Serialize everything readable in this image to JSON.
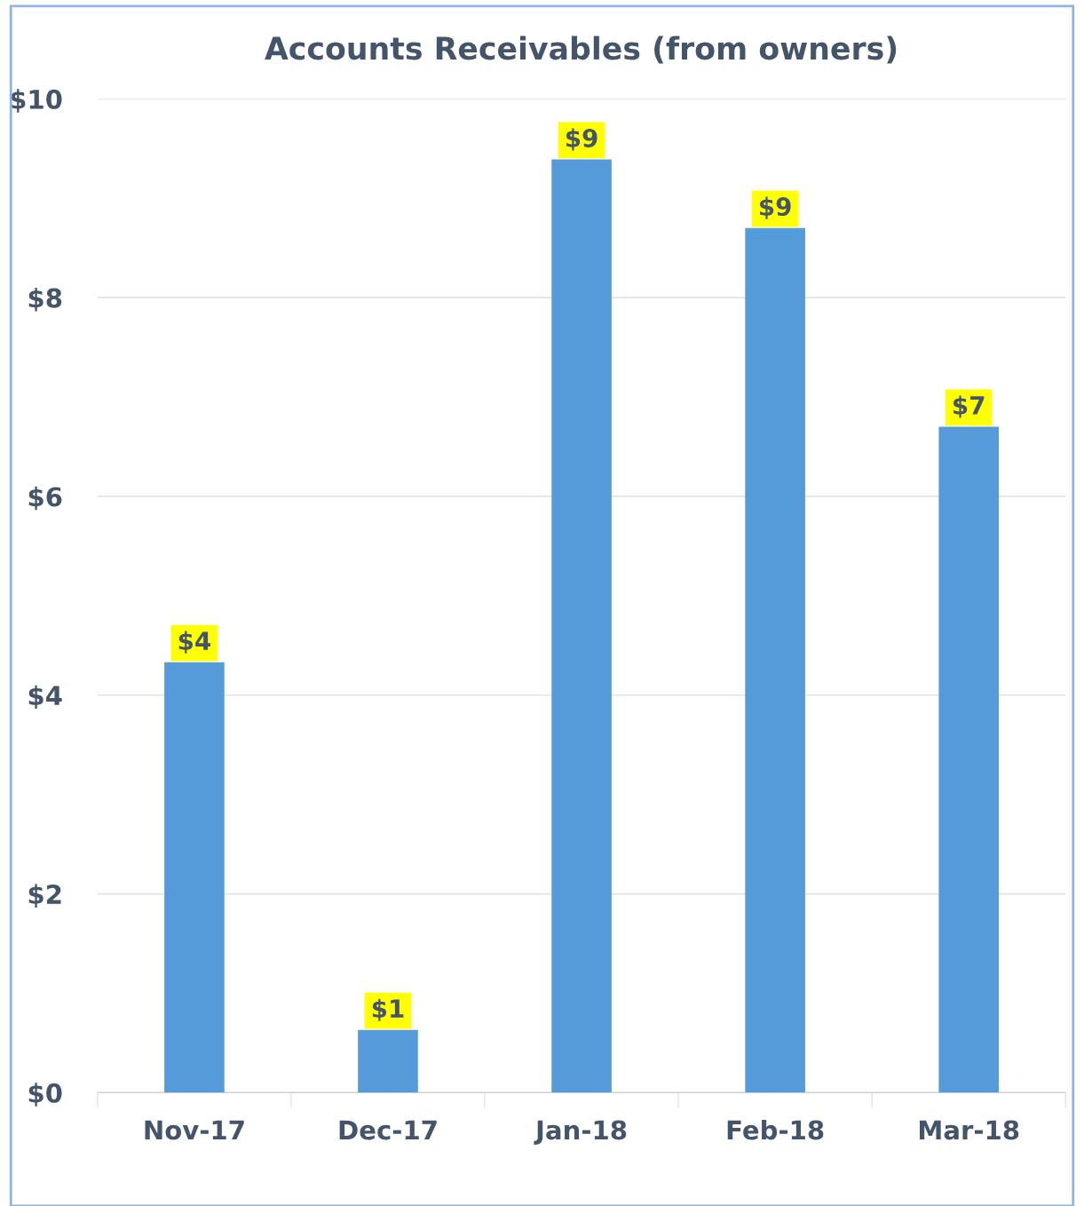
{
  "chart_data": {
    "type": "bar",
    "title": "Accounts Receivables (from owners)",
    "categories": [
      "Nov-17",
      "Dec-17",
      "Jan-18",
      "Feb-18",
      "Mar-18"
    ],
    "values": [
      4.33,
      0.63,
      9.39,
      8.7,
      6.7
    ],
    "value_labels": [
      "$4",
      "$1",
      "$9",
      "$9",
      "$7"
    ],
    "color": "#559bd9",
    "ylim": [
      0,
      10
    ],
    "yticks": [
      {
        "value": 0,
        "label": "$0"
      },
      {
        "value": 2,
        "label": "$2"
      },
      {
        "value": 4,
        "label": "$4"
      },
      {
        "value": 6,
        "label": "$6"
      },
      {
        "value": 8,
        "label": "$8"
      },
      {
        "value": 10,
        "label": "$10"
      }
    ],
    "grid": "y",
    "legend": false
  }
}
